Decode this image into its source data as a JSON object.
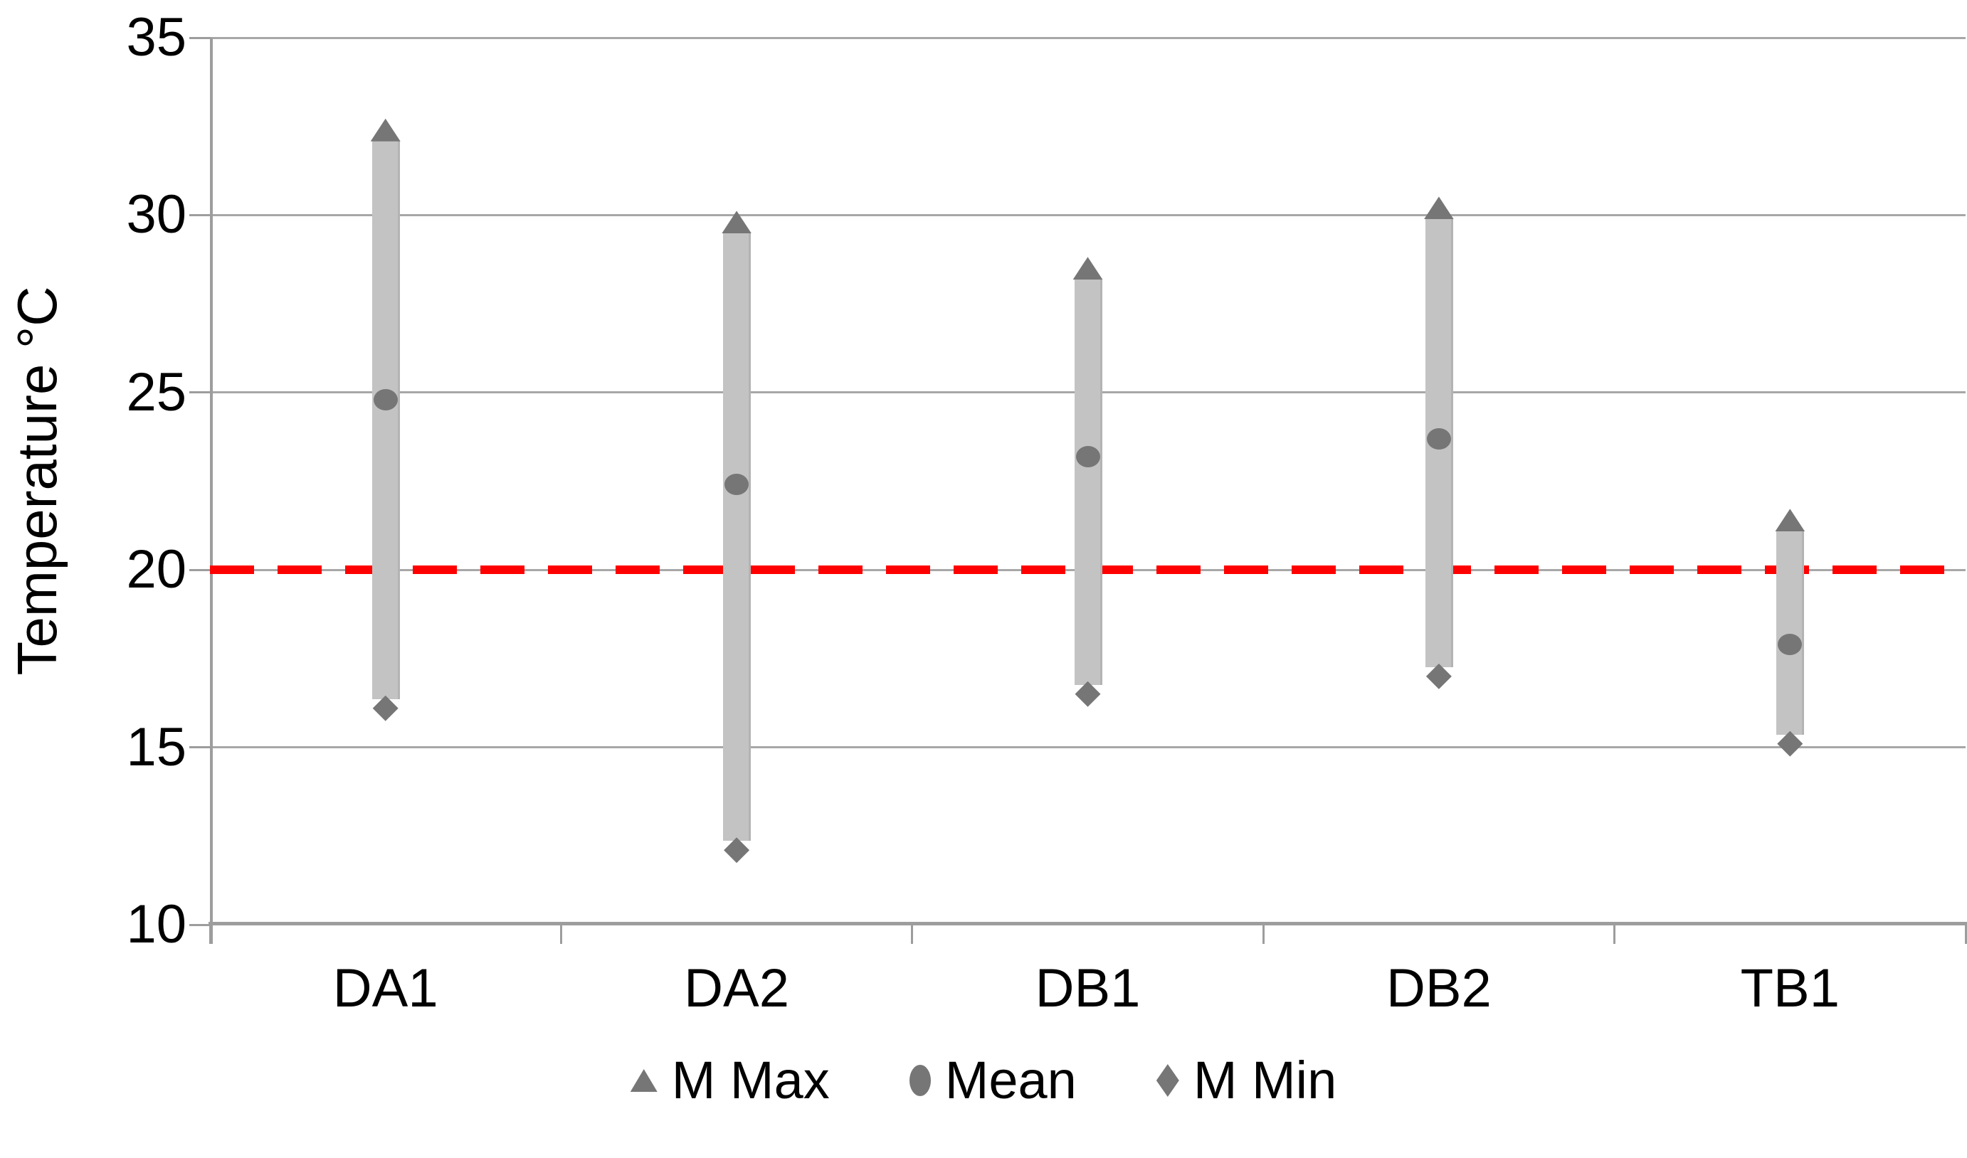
{
  "chart_data": {
    "type": "bar",
    "variant": "floating min-max range columns with point markers (Excel-style hi-lo chart)",
    "title": "",
    "categories": [
      "DA1",
      "DA2",
      "DB1",
      "DB2",
      "TB1"
    ],
    "series": [
      {
        "name": "M Max",
        "marker": "triangle",
        "values": [
          32.4,
          29.8,
          28.5,
          30.2,
          21.4
        ]
      },
      {
        "name": "Mean",
        "marker": "circle",
        "values": [
          24.8,
          22.4,
          23.2,
          23.7,
          17.9
        ]
      },
      {
        "name": "M Min",
        "marker": "diamond",
        "values": [
          16.1,
          12.1,
          16.5,
          17.0,
          15.1
        ]
      }
    ],
    "xlabel": "",
    "ylabel": "Temperature °C",
    "ylim": [
      10,
      35
    ],
    "yticks": [
      35,
      30,
      25,
      20,
      15,
      10
    ],
    "grid": true,
    "legend_position": "bottom",
    "reference_line": {
      "value": 20,
      "color": "#FF0000",
      "style": "dashed"
    }
  },
  "colors": {
    "background": "#FFFFFF",
    "bar_fill": "#C3C3C3",
    "marker": "#767676",
    "gridline": "#A7A7A7",
    "axis": "#9D9D9D",
    "reference": "#FF0000",
    "text": "#000000"
  }
}
